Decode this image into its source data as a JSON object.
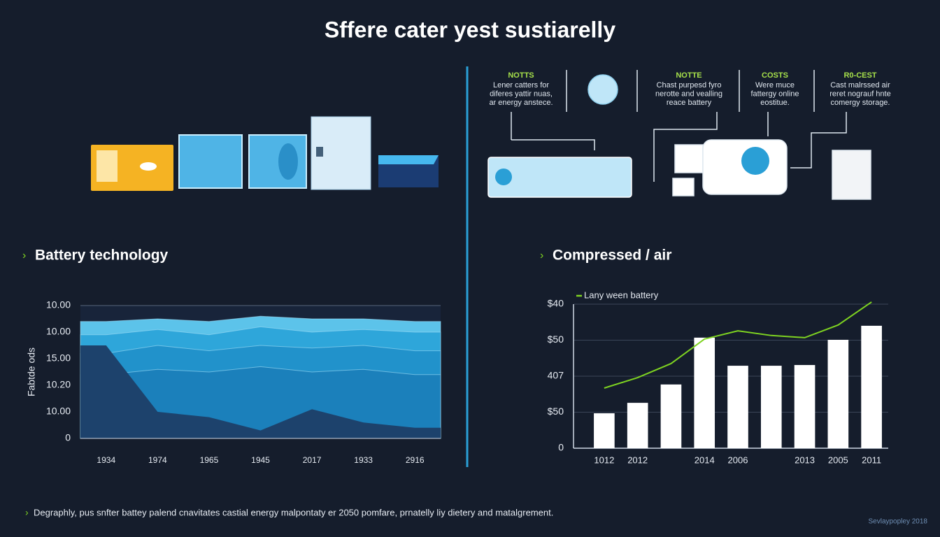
{
  "header": {
    "title": "Sffere cater yest sustiarelly"
  },
  "notes": [
    {
      "title": "NOTTS",
      "lines": [
        "Lener catters for",
        "diferes yattir nuas,",
        "ar energy anstece."
      ]
    },
    {
      "title": "NOTTE",
      "lines": [
        "Chast purpesd fyro",
        "nerotte and vealling",
        "reace battery"
      ]
    },
    {
      "title": "COSTS",
      "lines": [
        "Were muce",
        "fattergy online",
        "eostitue."
      ]
    },
    {
      "title": "R0-CEST",
      "lines": [
        "Cast malrssed air",
        "reret nograuf hnte",
        "comergy storage."
      ]
    }
  ],
  "sections": [
    "Battery technology",
    "Compressed / air"
  ],
  "chart_data": [
    {
      "type": "area",
      "ylabel": "Fabtde ods",
      "categories": [
        "1934",
        "1974",
        "1965",
        "1945",
        "2017",
        "1933",
        "2916"
      ],
      "series": [
        {
          "color": "#5cc3ea",
          "values": [
            4.4,
            4.5,
            4.4,
            4.6,
            4.5,
            4.5,
            4.4
          ]
        },
        {
          "color": "#2ea6da",
          "values": [
            3.9,
            4.1,
            3.9,
            4.2,
            4.0,
            4.1,
            4.0
          ]
        },
        {
          "color": "#2192cb",
          "values": [
            3.2,
            3.5,
            3.3,
            3.5,
            3.4,
            3.5,
            3.3
          ]
        },
        {
          "color": "#1b80bb",
          "values": [
            2.4,
            2.6,
            2.5,
            2.7,
            2.5,
            2.6,
            2.4
          ]
        },
        {
          "color": "#1d426c",
          "values": [
            3.5,
            1.0,
            0.8,
            0.3,
            1.1,
            0.6,
            0.4
          ]
        }
      ],
      "ylim": [
        0,
        5
      ],
      "yticks": [
        {
          "value": 0,
          "label": "0"
        },
        {
          "value": 1,
          "label": "10.00"
        },
        {
          "value": 2,
          "label": "10.20"
        },
        {
          "value": 3,
          "label": "15.00"
        },
        {
          "value": 4,
          "label": "10.00"
        },
        {
          "value": 5,
          "label": "10.00"
        }
      ],
      "grid": false
    },
    {
      "type": "bar",
      "categories": [
        "1012",
        "2012",
        null,
        "2014",
        "2006",
        null,
        "2013",
        "2005",
        "2011"
      ],
      "series": [
        {
          "type": "bar",
          "color": "#ffffff",
          "values": [
            0.97,
            1.26,
            1.77,
            3.07,
            2.29,
            2.29,
            2.31,
            3.01,
            3.4
          ]
        },
        {
          "type": "line",
          "name": "Lany ween battery",
          "color": "#7ed321",
          "values": [
            1.67,
            1.96,
            2.35,
            3.03,
            3.26,
            3.13,
            3.07,
            3.42,
            4.06
          ]
        }
      ],
      "ylim": [
        0,
        4
      ],
      "yticks": [
        0,
        {
          "value": 1,
          "label": "$50"
        },
        {
          "value": 2,
          "label": "407"
        },
        {
          "value": 3,
          "label": "$50"
        },
        {
          "value": 4,
          "label": "$40"
        }
      ],
      "grid": true,
      "legend": "top-left"
    }
  ],
  "footer": {
    "text": "Degraphly, pus snfter battey palend cnavitates castial energy malpontaty er 2050 pomfare, prnatelly liy dietery and matalgrement.",
    "credit": "Sevlaypopley 2018"
  }
}
